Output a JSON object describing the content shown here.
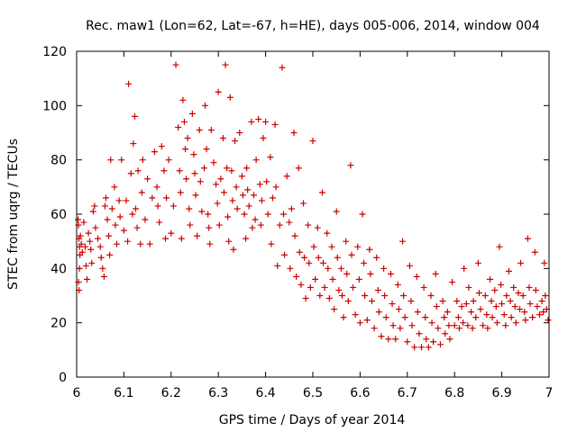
{
  "chart_data": {
    "type": "scatter",
    "title": "Rec. maw1 (Lon=62, Lat=-67, h=HE), days 005-006, 2014, window 004",
    "xlabel": "GPS time / Days of year 2014",
    "ylabel": "STEC from uqrg / TECUs",
    "xlim": [
      6,
      7
    ],
    "ylim": [
      0,
      120
    ],
    "xticks": [
      "6",
      "6.1",
      "6.2",
      "6.3",
      "6.4",
      "6.5",
      "6.6",
      "6.7",
      "6.8",
      "6.9",
      "7"
    ],
    "yticks": [
      "0",
      "20",
      "40",
      "60",
      "80",
      "100",
      "120"
    ],
    "grid": false,
    "marker": "plus",
    "color": "#cc0000",
    "series": [
      {
        "name": "STEC",
        "points": [
          [
            6.003,
            58
          ],
          [
            6.004,
            56
          ],
          [
            6.005,
            51
          ],
          [
            6.006,
            48
          ],
          [
            6.007,
            45
          ],
          [
            6.004,
            35
          ],
          [
            6.005,
            32
          ],
          [
            6.006,
            40
          ],
          [
            6.008,
            52
          ],
          [
            6.01,
            49
          ],
          [
            6.012,
            46
          ],
          [
            6.015,
            57
          ],
          [
            6.018,
            48
          ],
          [
            6.02,
            41
          ],
          [
            6.022,
            36
          ],
          [
            6.025,
            53
          ],
          [
            6.028,
            50
          ],
          [
            6.03,
            47
          ],
          [
            6.032,
            42
          ],
          [
            6.035,
            61
          ],
          [
            6.038,
            63
          ],
          [
            6.04,
            55
          ],
          [
            6.045,
            51
          ],
          [
            6.05,
            48
          ],
          [
            6.052,
            44
          ],
          [
            6.055,
            40
          ],
          [
            6.058,
            37
          ],
          [
            6.06,
            63
          ],
          [
            6.062,
            66
          ],
          [
            6.065,
            58
          ],
          [
            6.068,
            52
          ],
          [
            6.07,
            45
          ],
          [
            6.072,
            80
          ],
          [
            6.075,
            62
          ],
          [
            6.08,
            70
          ],
          [
            6.082,
            56
          ],
          [
            6.085,
            49
          ],
          [
            6.09,
            65
          ],
          [
            6.092,
            59
          ],
          [
            6.095,
            80
          ],
          [
            6.1,
            54
          ],
          [
            6.105,
            65
          ],
          [
            6.108,
            50
          ],
          [
            6.11,
            108
          ],
          [
            6.115,
            75
          ],
          [
            6.118,
            60
          ],
          [
            6.12,
            86
          ],
          [
            6.123,
            96
          ],
          [
            6.125,
            62
          ],
          [
            6.128,
            55
          ],
          [
            6.13,
            76
          ],
          [
            6.135,
            49
          ],
          [
            6.138,
            68
          ],
          [
            6.14,
            80
          ],
          [
            6.145,
            58
          ],
          [
            6.15,
            73
          ],
          [
            6.155,
            49
          ],
          [
            6.16,
            66
          ],
          [
            6.165,
            83
          ],
          [
            6.17,
            70
          ],
          [
            6.172,
            63
          ],
          [
            6.175,
            57
          ],
          [
            6.18,
            85
          ],
          [
            6.185,
            76
          ],
          [
            6.188,
            51
          ],
          [
            6.19,
            66
          ],
          [
            6.195,
            80
          ],
          [
            6.2,
            53
          ],
          [
            6.205,
            63
          ],
          [
            6.21,
            115
          ],
          [
            6.215,
            92
          ],
          [
            6.218,
            76
          ],
          [
            6.22,
            68
          ],
          [
            6.222,
            51
          ],
          [
            6.225,
            102
          ],
          [
            6.228,
            94
          ],
          [
            6.23,
            84
          ],
          [
            6.232,
            73
          ],
          [
            6.235,
            88
          ],
          [
            6.238,
            62
          ],
          [
            6.24,
            56
          ],
          [
            6.245,
            97
          ],
          [
            6.248,
            82
          ],
          [
            6.25,
            75
          ],
          [
            6.252,
            67
          ],
          [
            6.255,
            52
          ],
          [
            6.26,
            91
          ],
          [
            6.262,
            72
          ],
          [
            6.265,
            61
          ],
          [
            6.27,
            77
          ],
          [
            6.272,
            100
          ],
          [
            6.275,
            84
          ],
          [
            6.278,
            60
          ],
          [
            6.28,
            55
          ],
          [
            6.282,
            49
          ],
          [
            6.285,
            91
          ],
          [
            6.29,
            79
          ],
          [
            6.295,
            71
          ],
          [
            6.298,
            64
          ],
          [
            6.3,
            105
          ],
          [
            6.302,
            56
          ],
          [
            6.305,
            73
          ],
          [
            6.31,
            88
          ],
          [
            6.312,
            68
          ],
          [
            6.315,
            115
          ],
          [
            6.318,
            77
          ],
          [
            6.32,
            59
          ],
          [
            6.322,
            50
          ],
          [
            6.325,
            103
          ],
          [
            6.328,
            76
          ],
          [
            6.33,
            65
          ],
          [
            6.332,
            47
          ],
          [
            6.335,
            87
          ],
          [
            6.338,
            70
          ],
          [
            6.34,
            62
          ],
          [
            6.345,
            90
          ],
          [
            6.35,
            74
          ],
          [
            6.352,
            67
          ],
          [
            6.355,
            60
          ],
          [
            6.358,
            51
          ],
          [
            6.36,
            77
          ],
          [
            6.362,
            69
          ],
          [
            6.365,
            63
          ],
          [
            6.37,
            94
          ],
          [
            6.372,
            55
          ],
          [
            6.375,
            67
          ],
          [
            6.378,
            58
          ],
          [
            6.38,
            80
          ],
          [
            6.385,
            95
          ],
          [
            6.388,
            71
          ],
          [
            6.39,
            56
          ],
          [
            6.392,
            65
          ],
          [
            6.395,
            88
          ],
          [
            6.4,
            94
          ],
          [
            6.402,
            72
          ],
          [
            6.405,
            60
          ],
          [
            6.41,
            81
          ],
          [
            6.412,
            49
          ],
          [
            6.415,
            66
          ],
          [
            6.42,
            93
          ],
          [
            6.422,
            70
          ],
          [
            6.425,
            41
          ],
          [
            6.43,
            56
          ],
          [
            6.435,
            114
          ],
          [
            6.438,
            60
          ],
          [
            6.44,
            45
          ],
          [
            6.445,
            74
          ],
          [
            6.45,
            57
          ],
          [
            6.452,
            40
          ],
          [
            6.455,
            62
          ],
          [
            6.46,
            90
          ],
          [
            6.462,
            52
          ],
          [
            6.465,
            37
          ],
          [
            6.47,
            77
          ],
          [
            6.472,
            46
          ],
          [
            6.475,
            34
          ],
          [
            6.48,
            64
          ],
          [
            6.482,
            44
          ],
          [
            6.485,
            29
          ],
          [
            6.49,
            56
          ],
          [
            6.492,
            42
          ],
          [
            6.495,
            33
          ],
          [
            6.5,
            87
          ],
          [
            6.502,
            48
          ],
          [
            6.505,
            36
          ],
          [
            6.51,
            55
          ],
          [
            6.512,
            44
          ],
          [
            6.515,
            30
          ],
          [
            6.52,
            68
          ],
          [
            6.522,
            42
          ],
          [
            6.525,
            33
          ],
          [
            6.53,
            53
          ],
          [
            6.532,
            40
          ],
          [
            6.535,
            29
          ],
          [
            6.54,
            48
          ],
          [
            6.542,
            36
          ],
          [
            6.545,
            25
          ],
          [
            6.55,
            61
          ],
          [
            6.552,
            44
          ],
          [
            6.555,
            32
          ],
          [
            6.56,
            40
          ],
          [
            6.562,
            30
          ],
          [
            6.565,
            22
          ],
          [
            6.57,
            50
          ],
          [
            6.572,
            38
          ],
          [
            6.575,
            28
          ],
          [
            6.58,
            78
          ],
          [
            6.582,
            45
          ],
          [
            6.585,
            33
          ],
          [
            6.59,
            23
          ],
          [
            6.595,
            48
          ],
          [
            6.598,
            36
          ],
          [
            6.6,
            20
          ],
          [
            6.605,
            60
          ],
          [
            6.608,
            42
          ],
          [
            6.61,
            30
          ],
          [
            6.615,
            21
          ],
          [
            6.62,
            47
          ],
          [
            6.622,
            38
          ],
          [
            6.625,
            28
          ],
          [
            6.63,
            18
          ],
          [
            6.635,
            44
          ],
          [
            6.638,
            32
          ],
          [
            6.64,
            24
          ],
          [
            6.645,
            15
          ],
          [
            6.65,
            40
          ],
          [
            6.652,
            30
          ],
          [
            6.655,
            22
          ],
          [
            6.66,
            14
          ],
          [
            6.665,
            38
          ],
          [
            6.668,
            27
          ],
          [
            6.67,
            19
          ],
          [
            6.675,
            14
          ],
          [
            6.68,
            34
          ],
          [
            6.682,
            25
          ],
          [
            6.685,
            18
          ],
          [
            6.69,
            50
          ],
          [
            6.692,
            30
          ],
          [
            6.695,
            22
          ],
          [
            6.7,
            13
          ],
          [
            6.705,
            41
          ],
          [
            6.708,
            28
          ],
          [
            6.71,
            19
          ],
          [
            6.715,
            11
          ],
          [
            6.72,
            37
          ],
          [
            6.722,
            24
          ],
          [
            6.725,
            16
          ],
          [
            6.73,
            11
          ],
          [
            6.735,
            33
          ],
          [
            6.738,
            22
          ],
          [
            6.74,
            14
          ],
          [
            6.745,
            11
          ],
          [
            6.75,
            30
          ],
          [
            6.752,
            20
          ],
          [
            6.755,
            13
          ],
          [
            6.76,
            38
          ],
          [
            6.762,
            26
          ],
          [
            6.765,
            18
          ],
          [
            6.77,
            12
          ],
          [
            6.775,
            28
          ],
          [
            6.778,
            22
          ],
          [
            6.78,
            16
          ],
          [
            6.785,
            24
          ],
          [
            6.788,
            19
          ],
          [
            6.79,
            14
          ],
          [
            6.795,
            35
          ],
          [
            6.8,
            19
          ],
          [
            6.805,
            28
          ],
          [
            6.808,
            22
          ],
          [
            6.81,
            18
          ],
          [
            6.815,
            26
          ],
          [
            6.818,
            20
          ],
          [
            6.82,
            40
          ],
          [
            6.825,
            27
          ],
          [
            6.828,
            19
          ],
          [
            6.83,
            33
          ],
          [
            6.835,
            24
          ],
          [
            6.838,
            18
          ],
          [
            6.84,
            28
          ],
          [
            6.845,
            22
          ],
          [
            6.85,
            42
          ],
          [
            6.852,
            31
          ],
          [
            6.855,
            25
          ],
          [
            6.86,
            19
          ],
          [
            6.865,
            30
          ],
          [
            6.868,
            23
          ],
          [
            6.87,
            18
          ],
          [
            6.875,
            36
          ],
          [
            6.878,
            28
          ],
          [
            6.88,
            22
          ],
          [
            6.885,
            32
          ],
          [
            6.888,
            26
          ],
          [
            6.89,
            20
          ],
          [
            6.895,
            48
          ],
          [
            6.898,
            34
          ],
          [
            6.9,
            27
          ],
          [
            6.905,
            23
          ],
          [
            6.908,
            19
          ],
          [
            6.91,
            30
          ],
          [
            6.915,
            39
          ],
          [
            6.918,
            28
          ],
          [
            6.92,
            22
          ],
          [
            6.925,
            33
          ],
          [
            6.928,
            26
          ],
          [
            6.93,
            20
          ],
          [
            6.935,
            31
          ],
          [
            6.938,
            25
          ],
          [
            6.94,
            42
          ],
          [
            6.945,
            30
          ],
          [
            6.948,
            24
          ],
          [
            6.95,
            21
          ],
          [
            6.955,
            51
          ],
          [
            6.958,
            33
          ],
          [
            6.96,
            27
          ],
          [
            6.965,
            22
          ],
          [
            6.97,
            46
          ],
          [
            6.972,
            32
          ],
          [
            6.975,
            26
          ],
          [
            6.98,
            23
          ],
          [
            6.985,
            28
          ],
          [
            6.988,
            24
          ],
          [
            6.99,
            42
          ],
          [
            6.992,
            30
          ],
          [
            6.995,
            25
          ],
          [
            6.998,
            21
          ]
        ]
      }
    ]
  }
}
